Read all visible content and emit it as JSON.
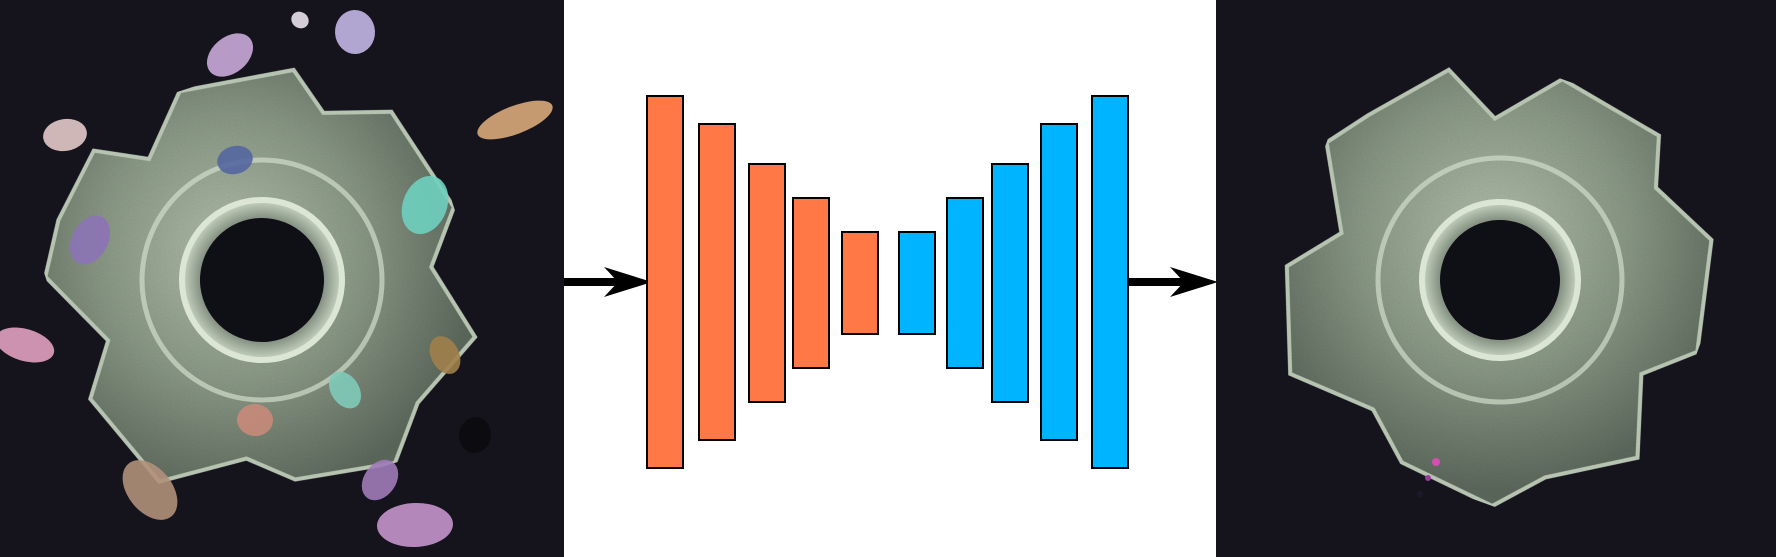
{
  "figure": {
    "input_panel": {
      "depicts": "t-nut-with-synthetic-color-blobs",
      "background": "#15141d",
      "metal": "#8c9a88"
    },
    "output_panel": {
      "depicts": "t-nut-reconstruction",
      "background": "#15141d",
      "metal": "#8c9a88"
    },
    "network": {
      "encoder_color": "#ff7845",
      "decoder_color": "#00b4ff",
      "arrow_color": "#000000",
      "encoder_layer_count": 5,
      "decoder_layer_count": 5
    }
  }
}
